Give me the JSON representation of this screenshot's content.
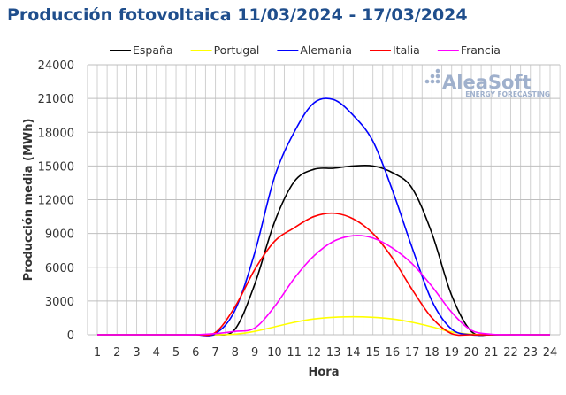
{
  "title": "Producción fotovoltaica 11/03/2024 - 17/03/2024",
  "logo": {
    "name": "AleaSoft",
    "tagline": "ENERGY FORECASTING"
  },
  "chart_data": {
    "type": "line",
    "title": "Producción fotovoltaica 11/03/2024 - 17/03/2024",
    "xlabel": "Hora",
    "ylabel": "Producción media (MWh)",
    "x": [
      1,
      2,
      3,
      4,
      5,
      6,
      7,
      8,
      9,
      10,
      11,
      12,
      13,
      14,
      15,
      16,
      17,
      18,
      19,
      20,
      21,
      22,
      23,
      24
    ],
    "yticks": [
      0,
      3000,
      6000,
      9000,
      12000,
      15000,
      18000,
      21000,
      24000
    ],
    "ylim": [
      0,
      24000
    ],
    "grid": true,
    "legend": "top",
    "series": [
      {
        "name": "España",
        "color": "#000000",
        "values": [
          0,
          0,
          0,
          0,
          0,
          0,
          0,
          500,
          4500,
          10000,
          13600,
          14700,
          14800,
          15000,
          15000,
          14400,
          13000,
          9000,
          3500,
          300,
          0,
          0,
          0,
          0
        ]
      },
      {
        "name": "Portugal",
        "color": "#ffff00",
        "values": [
          0,
          0,
          0,
          0,
          0,
          0,
          0,
          50,
          300,
          700,
          1100,
          1400,
          1550,
          1600,
          1550,
          1400,
          1100,
          700,
          250,
          50,
          0,
          0,
          0,
          0
        ]
      },
      {
        "name": "Alemania",
        "color": "#0000ff",
        "values": [
          0,
          0,
          0,
          0,
          0,
          0,
          100,
          2200,
          7300,
          14000,
          18000,
          20600,
          20900,
          19500,
          17200,
          12800,
          7700,
          3000,
          500,
          0,
          0,
          0,
          0,
          0
        ]
      },
      {
        "name": "Italia",
        "color": "#ff0000",
        "values": [
          0,
          0,
          0,
          0,
          0,
          0,
          200,
          2500,
          5800,
          8300,
          9500,
          10500,
          10800,
          10300,
          9000,
          6800,
          4000,
          1500,
          100,
          0,
          0,
          0,
          0,
          0
        ]
      },
      {
        "name": "Francia",
        "color": "#ff00ff",
        "values": [
          0,
          0,
          0,
          0,
          0,
          0,
          100,
          300,
          600,
          2500,
          5000,
          7000,
          8300,
          8800,
          8600,
          7700,
          6300,
          4300,
          2000,
          400,
          50,
          0,
          0,
          0
        ]
      }
    ]
  }
}
